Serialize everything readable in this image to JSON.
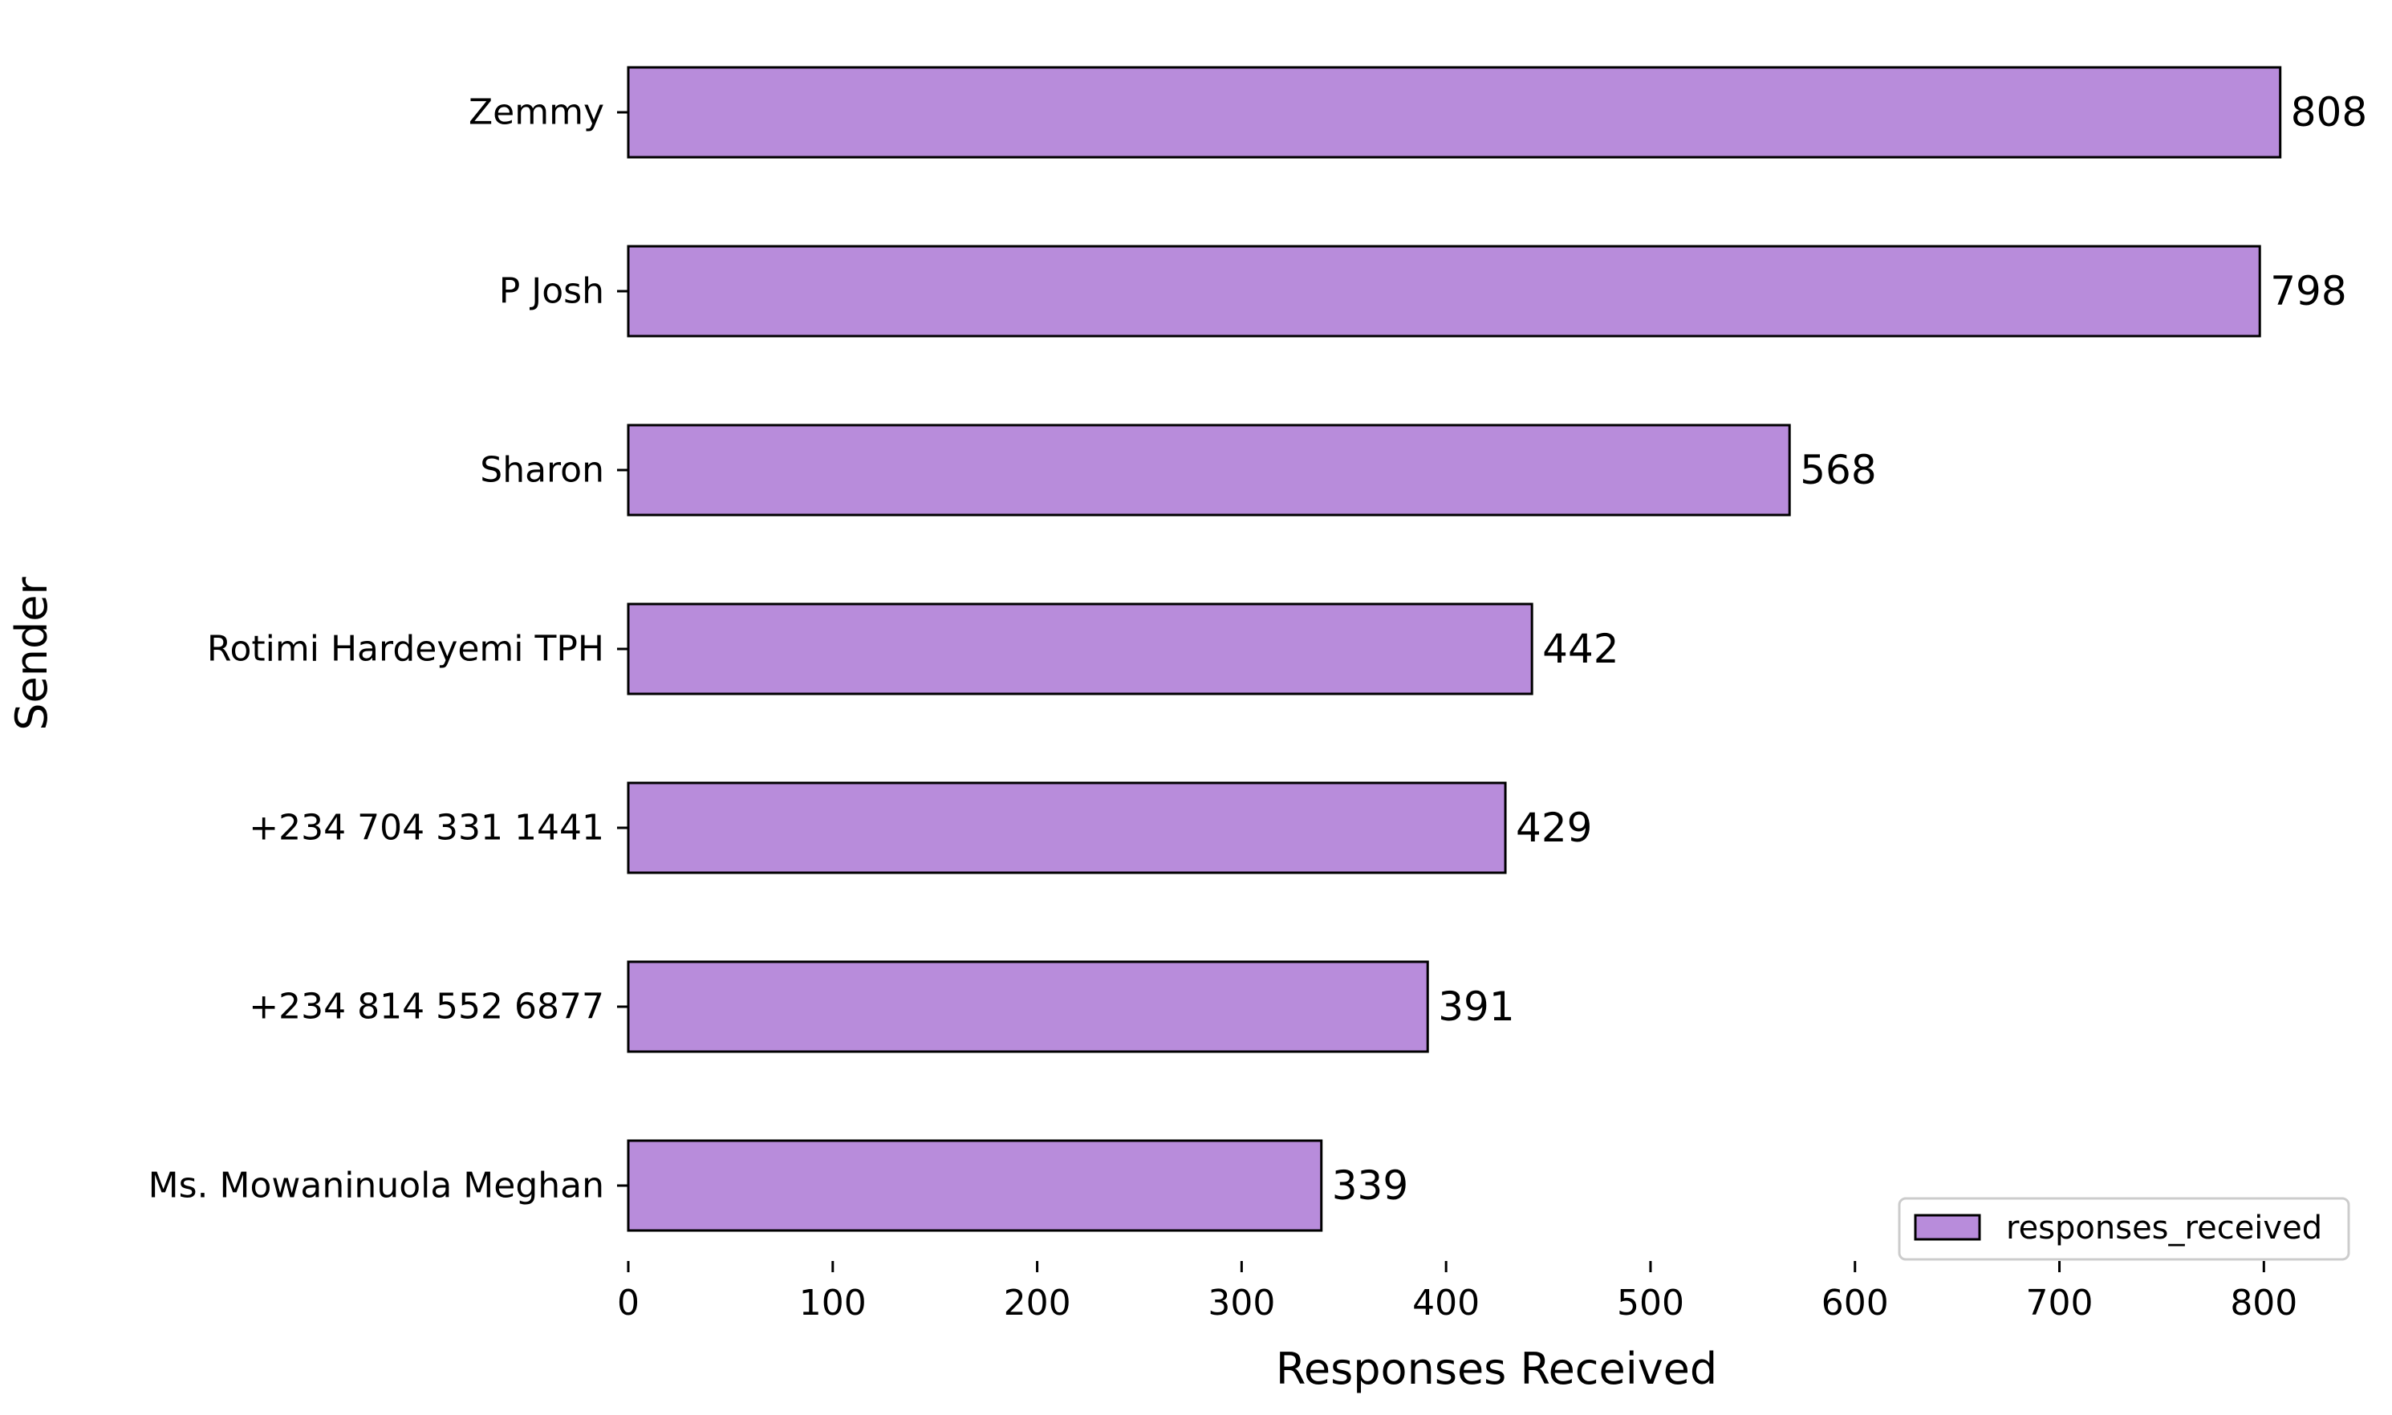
{
  "chart_data": {
    "type": "bar",
    "orientation": "horizontal",
    "categories": [
      "Zemmy",
      "P Josh",
      "Sharon",
      "Rotimi Hardeyemi TPH",
      "+234 704 331 1441",
      "+234 814 552 6877",
      "Ms. Mowaninuola Meghan"
    ],
    "series": [
      {
        "name": "responses_received",
        "values": [
          808,
          798,
          568,
          442,
          429,
          391,
          339
        ],
        "color": "#b88cdb"
      }
    ],
    "data_labels": [
      "808",
      "798",
      "568",
      "442",
      "429",
      "391",
      "339"
    ],
    "xlabel": "Responses Received",
    "ylabel": "Sender",
    "xlim": [
      0,
      840
    ],
    "xticks": [
      0,
      100,
      200,
      300,
      400,
      500,
      600,
      700,
      800
    ],
    "xtick_labels": [
      "0",
      "100",
      "200",
      "300",
      "400",
      "500",
      "600",
      "700",
      "800"
    ],
    "grid": false,
    "legend_position": "bottom-right",
    "bar_edge_color": "#000000"
  }
}
